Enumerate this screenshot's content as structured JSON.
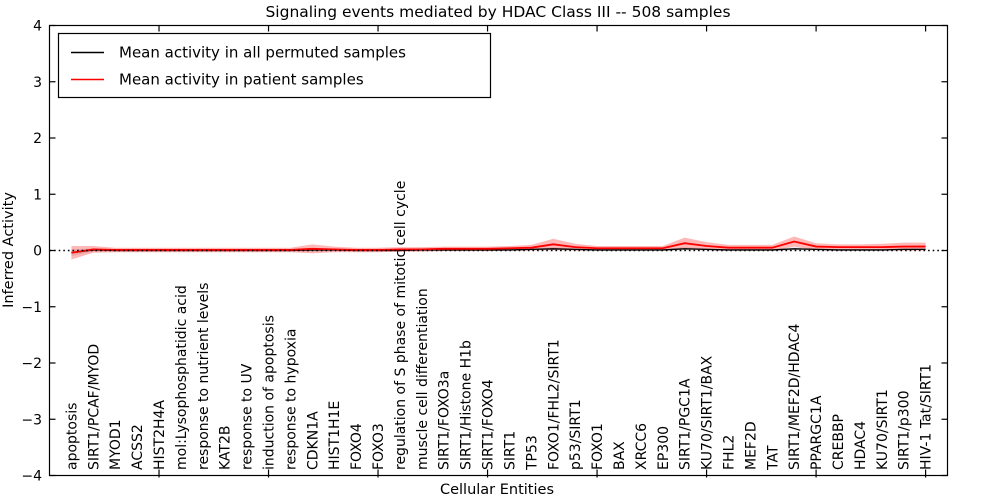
{
  "chart_data": {
    "type": "line",
    "title": "Signaling events mediated by HDAC Class III -- 508 samples",
    "xlabel": "Cellular Entities",
    "ylabel": "Inferred Activity",
    "ylim": [
      -4,
      4
    ],
    "xlim": [
      0,
      41
    ],
    "grid": false,
    "legend_position": "upper left",
    "ytick_values": [
      4,
      3,
      2,
      1,
      0,
      -1,
      -2,
      -3,
      -4
    ],
    "ytick_labels": [
      "4",
      "3",
      "2",
      "1",
      "0",
      "−1",
      "−2",
      "−3",
      "−4"
    ],
    "xtick_positions": [
      5,
      10,
      15,
      20,
      25,
      30,
      35,
      40
    ],
    "zero_line": {
      "value": 0,
      "style": "dotted",
      "color": "#000000"
    },
    "categories": [
      "apoptosis",
      "SIRT1/PCAF/MYOD",
      "MYOD1",
      "ACSS2",
      "HIST2H4A",
      "mol:Lysophosphatidic acid",
      "response to nutrient levels",
      "KAT2B",
      "response to UV",
      "induction of apoptosis",
      "response to hypoxia",
      "CDKN1A",
      "HIST1H1E",
      "FOXO4",
      "FOXO3",
      "regulation of S phase of mitotic cell cycle",
      "muscle cell differentiation",
      "SIRT1/FOXO3a",
      "SIRT1/Histone H1b",
      "SIRT1/FOXO4",
      "SIRT1",
      "TP53",
      "FOXO1/FHL2/SIRT1",
      "p53/SIRT1",
      "FOXO1",
      "BAX",
      "XRCC6",
      "EP300",
      "SIRT1/PGC1A",
      "KU70/SIRT1/BAX",
      "FHL2",
      "MEF2D",
      "TAT",
      "SIRT1/MEF2D/HDAC4",
      "PPARGC1A",
      "CREBBP",
      "HDAC4",
      "KU70/SIRT1",
      "SIRT1/p300",
      "HIV-1 Tat/SIRT1"
    ],
    "series": [
      {
        "name": "Mean activity in all permuted samples",
        "color": "#000000",
        "band_color": "rgba(120,120,120,0.18)",
        "values": [
          -0.04,
          0.01,
          0,
          0,
          0,
          0,
          0,
          0,
          0,
          0,
          0,
          0.01,
          0.01,
          0,
          0,
          0,
          0.01,
          0.01,
          0.01,
          0.01,
          0.01,
          0.02,
          0.03,
          0.02,
          0.01,
          0.01,
          0.01,
          0.01,
          0.03,
          0.02,
          0.01,
          0.01,
          0.01,
          0.03,
          0.02,
          0.01,
          0.01,
          0.01,
          0.02,
          0.02
        ],
        "spread": [
          0.06,
          0.03,
          0.02,
          0.02,
          0.02,
          0.02,
          0.02,
          0.02,
          0.02,
          0.02,
          0.02,
          0.03,
          0.02,
          0.02,
          0.02,
          0.02,
          0.02,
          0.02,
          0.02,
          0.02,
          0.02,
          0.02,
          0.03,
          0.02,
          0.02,
          0.02,
          0.02,
          0.02,
          0.03,
          0.02,
          0.02,
          0.02,
          0.02,
          0.03,
          0.02,
          0.02,
          0.02,
          0.02,
          0.02,
          0.02
        ]
      },
      {
        "name": "Mean activity in patient samples",
        "color": "#ff0000",
        "band_color": "rgba(255,0,0,0.28)",
        "values": [
          -0.04,
          0.02,
          0.01,
          0.01,
          0.01,
          0.01,
          0.01,
          0.01,
          0.01,
          0.01,
          0.01,
          0.03,
          0.02,
          0.01,
          0.01,
          0.02,
          0.02,
          0.03,
          0.03,
          0.03,
          0.04,
          0.05,
          0.11,
          0.06,
          0.04,
          0.04,
          0.04,
          0.04,
          0.13,
          0.08,
          0.05,
          0.05,
          0.05,
          0.16,
          0.07,
          0.06,
          0.06,
          0.06,
          0.07,
          0.07
        ],
        "spread": [
          0.12,
          0.06,
          0.04,
          0.04,
          0.04,
          0.04,
          0.04,
          0.04,
          0.04,
          0.04,
          0.04,
          0.08,
          0.05,
          0.04,
          0.04,
          0.04,
          0.04,
          0.04,
          0.04,
          0.04,
          0.04,
          0.05,
          0.1,
          0.06,
          0.04,
          0.04,
          0.04,
          0.04,
          0.1,
          0.07,
          0.05,
          0.05,
          0.05,
          0.09,
          0.06,
          0.05,
          0.05,
          0.06,
          0.07,
          0.07
        ]
      }
    ]
  }
}
